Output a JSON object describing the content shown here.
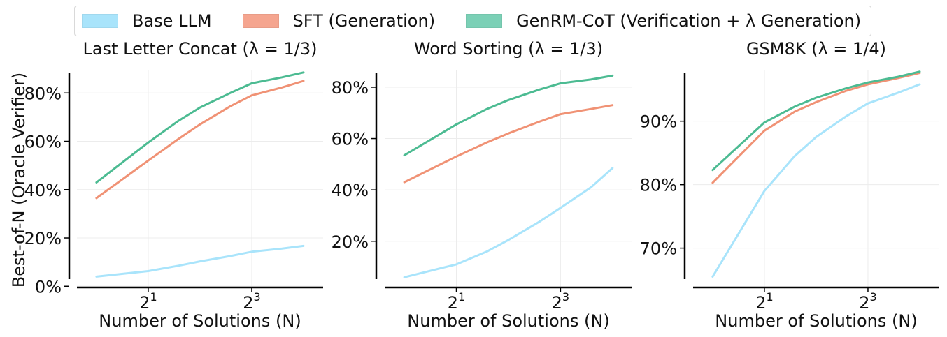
{
  "legend": {
    "items": [
      {
        "label": "Base LLM",
        "color": "#a9e4fb"
      },
      {
        "label": "SFT (Generation)",
        "color": "#f5a58f"
      },
      {
        "label": "GenRM-CoT (Verification + λ Generation)",
        "color": "#7bd0b6"
      }
    ]
  },
  "shared": {
    "ylabel": "Best-of-N (Oracle Verifier)",
    "xlabel": "Number of Solutions (N)"
  },
  "chart_data": [
    {
      "type": "line",
      "title": "Last Letter Concat (λ = 1/3)",
      "xlabel": "Number of Solutions (N)",
      "ylabel": "Best-of-N (Oracle Verifier)",
      "x_scale": "log2",
      "x": [
        1,
        2,
        3,
        4,
        6,
        8,
        12,
        16
      ],
      "x_ticks": [
        {
          "value": 2,
          "base": "2",
          "exp": "1"
        },
        {
          "value": 8,
          "base": "2",
          "exp": "3"
        }
      ],
      "xlim": [
        0.77,
        20.8
      ],
      "y_ticks": [
        0,
        20,
        40,
        60,
        80
      ],
      "y_tick_labels": [
        "0%",
        "20%",
        "40%",
        "60%",
        "80%"
      ],
      "ylim": [
        -0.5,
        92.5
      ],
      "grid": true,
      "series": [
        {
          "name": "Base LLM",
          "color": "#a9e4fb",
          "values": [
            4.0,
            6.3,
            8.5,
            10.3,
            12.5,
            14.3,
            15.6,
            16.7
          ]
        },
        {
          "name": "SFT (Generation)",
          "color": "#f09275",
          "values": [
            36.5,
            52.0,
            61.0,
            67.0,
            74.5,
            79.0,
            82.3,
            85.0
          ]
        },
        {
          "name": "GenRM-CoT (Verification + λ Generation)",
          "color": "#4cbb92",
          "values": [
            43.0,
            59.5,
            68.5,
            74.0,
            80.0,
            84.0,
            86.5,
            88.5
          ]
        }
      ]
    },
    {
      "type": "line",
      "title": "Word Sorting (λ = 1/3)",
      "xlabel": "Number of Solutions (N)",
      "ylabel": "",
      "x_scale": "log2",
      "x": [
        1,
        2,
        3,
        4,
        6,
        8,
        12,
        16
      ],
      "x_ticks": [
        {
          "value": 2,
          "base": "2",
          "exp": "1"
        },
        {
          "value": 8,
          "base": "2",
          "exp": "3"
        }
      ],
      "xlim": [
        0.77,
        20.8
      ],
      "y_ticks": [
        20,
        40,
        60,
        80
      ],
      "y_tick_labels": [
        "20%",
        "40%",
        "60%",
        "80%"
      ],
      "ylim": [
        2,
        89.5
      ],
      "grid": true,
      "series": [
        {
          "name": "Base LLM",
          "color": "#a9e4fb",
          "values": [
            6.0,
            11.0,
            16.0,
            20.5,
            27.5,
            33.0,
            41.0,
            48.5
          ]
        },
        {
          "name": "SFT (Generation)",
          "color": "#f09275",
          "values": [
            43.0,
            53.0,
            58.5,
            62.0,
            66.5,
            69.5,
            71.5,
            73.0
          ]
        },
        {
          "name": "GenRM-CoT (Verification + λ Generation)",
          "color": "#4cbb92",
          "values": [
            53.5,
            65.5,
            71.5,
            75.0,
            79.0,
            81.5,
            83.0,
            84.5
          ]
        }
      ]
    },
    {
      "type": "line",
      "title": "GSM8K (λ = 1/4)",
      "xlabel": "Number of Solutions (N)",
      "ylabel": "",
      "x_scale": "log2",
      "x": [
        1,
        2,
        3,
        4,
        6,
        8,
        12,
        16
      ],
      "x_ticks": [
        {
          "value": 2,
          "base": "2",
          "exp": "1"
        },
        {
          "value": 8,
          "base": "2",
          "exp": "3"
        }
      ],
      "xlim": [
        0.77,
        20.8
      ],
      "y_ticks": [
        70,
        80,
        90
      ],
      "y_tick_labels": [
        "70%",
        "80%",
        "90%"
      ],
      "ylim": [
        63.8,
        99.2
      ],
      "grid": true,
      "series": [
        {
          "name": "Base LLM",
          "color": "#a9e4fb",
          "values": [
            65.5,
            79.0,
            84.5,
            87.5,
            90.8,
            92.8,
            94.5,
            95.8
          ]
        },
        {
          "name": "SFT (Generation)",
          "color": "#f09275",
          "values": [
            80.3,
            88.5,
            91.5,
            93.0,
            94.8,
            95.8,
            96.8,
            97.6
          ]
        },
        {
          "name": "GenRM-CoT (Verification + λ Generation)",
          "color": "#4cbb92",
          "values": [
            82.3,
            89.8,
            92.3,
            93.7,
            95.2,
            96.1,
            97.0,
            97.8
          ]
        }
      ]
    }
  ]
}
